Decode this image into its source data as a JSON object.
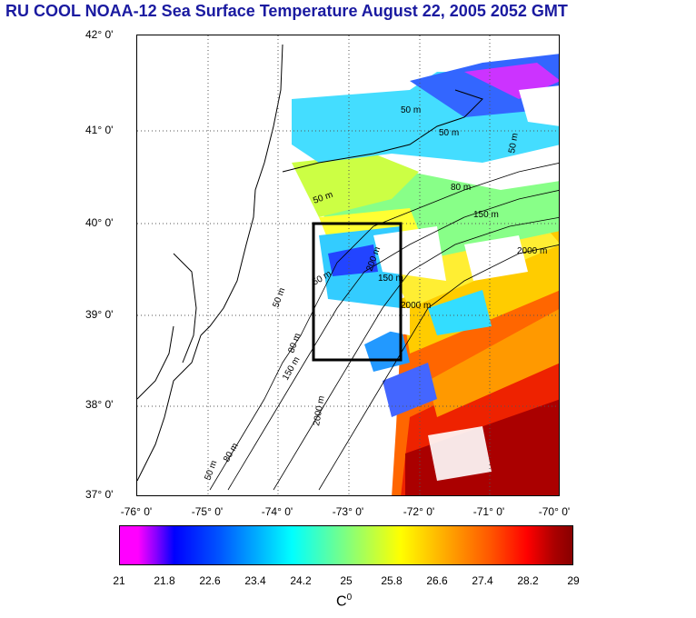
{
  "title": "RU COOL  NOAA-12 Sea Surface Temperature August 22, 2005 2052 GMT",
  "y_axis": [
    "42° 0'",
    "41° 0'",
    "40° 0'",
    "39° 0'",
    "38° 0'",
    "37° 0'"
  ],
  "x_axis": [
    "-76° 0'",
    "-75° 0'",
    "-74° 0'",
    "-73° 0'",
    "-72° 0'",
    "-71° 0'",
    "-70° 0'"
  ],
  "contours": [
    "50 m",
    "50 m",
    "50 m",
    "80 m",
    "150 m",
    "2000 m",
    "2000 m",
    "2000 m",
    "50 m",
    "200 m",
    "150 m",
    "80 m",
    "150 m",
    "50 m",
    "80 m",
    "50 m",
    "50 m"
  ],
  "colorbar": {
    "ticks": [
      "21",
      "21.8",
      "22.6",
      "23.4",
      "24.2",
      "25",
      "25.8",
      "26.6",
      "27.4",
      "28.2",
      "29"
    ],
    "unit": "C",
    "unit_sup": "0"
  }
}
